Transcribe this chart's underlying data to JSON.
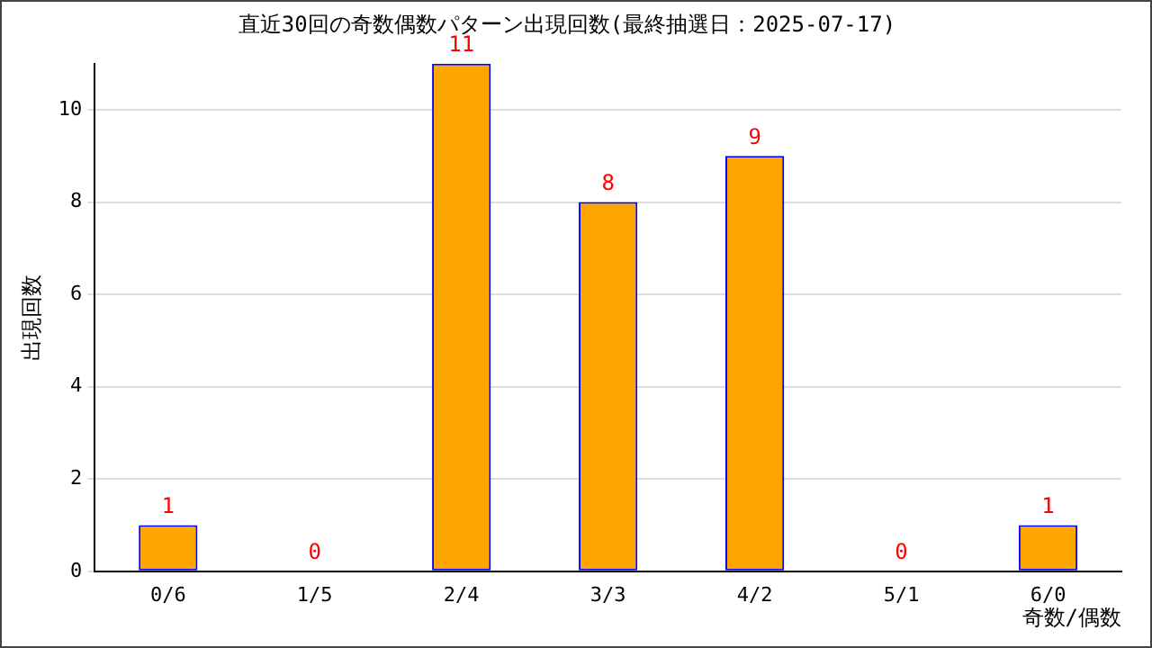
{
  "chart_data": {
    "type": "bar",
    "title": "直近30回の奇数偶数パターン出現回数(最終抽選日：2025-07-17)",
    "xlabel": "奇数/偶数",
    "ylabel": "出現回数",
    "categories": [
      "0/6",
      "1/5",
      "2/4",
      "3/3",
      "4/2",
      "5/1",
      "6/0"
    ],
    "values": [
      1,
      0,
      11,
      8,
      9,
      0,
      1
    ],
    "color": "#ffa500",
    "ylim": [
      0,
      11
    ],
    "yticks": [
      0,
      2,
      4,
      6,
      8,
      10
    ],
    "grid": "y",
    "data_labels": true,
    "legend": false
  }
}
